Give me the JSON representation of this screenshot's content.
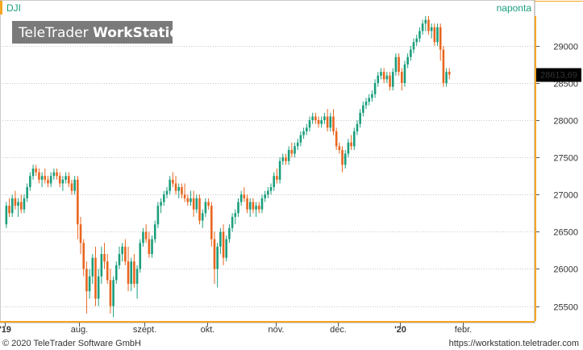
{
  "header": {
    "symbol": "DJI",
    "period": "naponta",
    "watermark_light": "TeleTrader ",
    "watermark_bold": "WorkStation"
  },
  "footer": {
    "copyright": "© 2020 TeleTrader Software GmbH",
    "url": "https://workstation.teletrader.com"
  },
  "colors": {
    "up": "#1a9e7c",
    "down": "#e8651e",
    "accent": "#f5a623",
    "grid": "#c8c8c8",
    "price_box": "#000000",
    "title": "#1a9e7c"
  },
  "chart_data": {
    "type": "candlestick",
    "symbol": "DJI",
    "period": "naponta",
    "last_price": 28613.69,
    "last_price_label": "28613,69",
    "ylim": [
      25300,
      29400
    ],
    "xlim": [
      0,
      160
    ],
    "y_ticks": [
      {
        "value": 25500,
        "label": "25500"
      },
      {
        "value": 26000,
        "label": "26000"
      },
      {
        "value": 26500,
        "label": "26500"
      },
      {
        "value": 27000,
        "label": "27000"
      },
      {
        "value": 27500,
        "label": "27500"
      },
      {
        "value": 28000,
        "label": "28000"
      },
      {
        "value": 28500,
        "label": "28500"
      },
      {
        "value": 29000,
        "label": "29000"
      }
    ],
    "x_ticks": [
      {
        "index": 0,
        "label": "'19",
        "bold": true
      },
      {
        "index": 25,
        "label": "aug.",
        "bold": false
      },
      {
        "index": 47,
        "label": "szept.",
        "bold": false
      },
      {
        "index": 68,
        "label": "okt.",
        "bold": false
      },
      {
        "index": 91,
        "label": "nov.",
        "bold": false
      },
      {
        "index": 112,
        "label": "dec.",
        "bold": false
      },
      {
        "index": 133,
        "label": "'20",
        "bold": true
      },
      {
        "index": 154,
        "label": "febr.",
        "bold": false
      }
    ],
    "candles": [
      [
        26600,
        26900,
        26550,
        26850
      ],
      [
        26850,
        26950,
        26700,
        26750
      ],
      [
        26750,
        27000,
        26700,
        26950
      ],
      [
        26950,
        27050,
        26800,
        26850
      ],
      [
        26850,
        26950,
        26700,
        26900
      ],
      [
        26900,
        27000,
        26750,
        26800
      ],
      [
        26800,
        27000,
        26750,
        26950
      ],
      [
        26950,
        27150,
        26900,
        27100
      ],
      [
        27100,
        27300,
        27050,
        27250
      ],
      [
        27250,
        27400,
        27200,
        27350
      ],
      [
        27350,
        27400,
        27250,
        27300
      ],
      [
        27300,
        27350,
        27150,
        27200
      ],
      [
        27200,
        27300,
        27100,
        27250
      ],
      [
        27250,
        27350,
        27150,
        27200
      ],
      [
        27200,
        27250,
        27100,
        27150
      ],
      [
        27150,
        27300,
        27100,
        27250
      ],
      [
        27250,
        27350,
        27200,
        27300
      ],
      [
        27300,
        27350,
        27200,
        27250
      ],
      [
        27250,
        27300,
        27100,
        27150
      ],
      [
        27150,
        27250,
        27050,
        27200
      ],
      [
        27200,
        27300,
        27150,
        27250
      ],
      [
        27250,
        27300,
        27100,
        27150
      ],
      [
        27150,
        27200,
        27000,
        27050
      ],
      [
        27050,
        27250,
        27000,
        27200
      ],
      [
        27200,
        27250,
        26400,
        26600
      ],
      [
        26600,
        26700,
        26200,
        26350
      ],
      [
        26350,
        26400,
        25900,
        26000
      ],
      [
        26000,
        26100,
        25400,
        25700
      ],
      [
        25700,
        26000,
        25600,
        25900
      ],
      [
        25900,
        26200,
        25800,
        26150
      ],
      [
        26150,
        26300,
        25500,
        25600
      ],
      [
        25600,
        26000,
        25500,
        25900
      ],
      [
        25900,
        26300,
        25800,
        26200
      ],
      [
        26200,
        26350,
        26000,
        26100
      ],
      [
        26100,
        26200,
        25800,
        25850
      ],
      [
        25850,
        26000,
        25400,
        25500
      ],
      [
        25500,
        25900,
        25350,
        25850
      ],
      [
        25850,
        26100,
        25800,
        26050
      ],
      [
        26050,
        26300,
        26000,
        26200
      ],
      [
        26200,
        26350,
        26100,
        26300
      ],
      [
        26300,
        26400,
        26050,
        26100
      ],
      [
        26100,
        26300,
        25700,
        25800
      ],
      [
        25800,
        26150,
        25700,
        26100
      ],
      [
        26100,
        26200,
        25750,
        25800
      ],
      [
        25800,
        26050,
        25600,
        26000
      ],
      [
        26000,
        26400,
        25950,
        26350
      ],
      [
        26350,
        26550,
        26300,
        26500
      ],
      [
        26500,
        26600,
        26350,
        26400
      ],
      [
        26400,
        26500,
        26150,
        26200
      ],
      [
        26200,
        26450,
        26150,
        26400
      ],
      [
        26400,
        26650,
        26350,
        26600
      ],
      [
        26600,
        26900,
        26550,
        26850
      ],
      [
        26850,
        26950,
        26750,
        26900
      ],
      [
        26900,
        27050,
        26850,
        27000
      ],
      [
        27000,
        27100,
        26950,
        27050
      ],
      [
        27050,
        27250,
        27000,
        27200
      ],
      [
        27200,
        27300,
        27100,
        27150
      ],
      [
        27150,
        27250,
        27000,
        27050
      ],
      [
        27050,
        27150,
        26950,
        27100
      ],
      [
        27100,
        27150,
        26950,
        27000
      ],
      [
        27000,
        27150,
        26900,
        26950
      ],
      [
        26950,
        27000,
        26850,
        26900
      ],
      [
        26900,
        27050,
        26850,
        26950
      ],
      [
        26950,
        27050,
        26700,
        26800
      ],
      [
        26800,
        27000,
        26750,
        26950
      ],
      [
        26950,
        27000,
        26600,
        26650
      ],
      [
        26650,
        26800,
        26550,
        26750
      ],
      [
        26750,
        26950,
        26700,
        26900
      ],
      [
        26900,
        26950,
        26800,
        26850
      ],
      [
        26850,
        26900,
        26300,
        26400
      ],
      [
        26400,
        26500,
        25800,
        26000
      ],
      [
        26000,
        26350,
        25750,
        26300
      ],
      [
        26300,
        26550,
        26200,
        26500
      ],
      [
        26500,
        26600,
        26050,
        26150
      ],
      [
        26150,
        26450,
        26100,
        26400
      ],
      [
        26400,
        26600,
        26350,
        26550
      ],
      [
        26550,
        26750,
        26500,
        26700
      ],
      [
        26700,
        26800,
        26600,
        26750
      ],
      [
        26750,
        26950,
        26700,
        26900
      ],
      [
        26900,
        27050,
        26850,
        27000
      ],
      [
        27000,
        27100,
        26900,
        26950
      ],
      [
        26950,
        27000,
        26750,
        26800
      ],
      [
        26800,
        26950,
        26700,
        26900
      ],
      [
        26900,
        26950,
        26750,
        26800
      ],
      [
        26800,
        26900,
        26700,
        26850
      ],
      [
        26850,
        26900,
        26750,
        26800
      ],
      [
        26800,
        27000,
        26750,
        26950
      ],
      [
        26950,
        27050,
        26900,
        27000
      ],
      [
        27000,
        27100,
        26950,
        27050
      ],
      [
        27050,
        27150,
        27000,
        27100
      ],
      [
        27100,
        27300,
        27050,
        27250
      ],
      [
        27250,
        27350,
        27150,
        27200
      ],
      [
        27200,
        27500,
        27150,
        27450
      ],
      [
        27450,
        27550,
        27400,
        27500
      ],
      [
        27500,
        27550,
        27400,
        27450
      ],
      [
        27450,
        27650,
        27400,
        27600
      ],
      [
        27600,
        27700,
        27500,
        27550
      ],
      [
        27550,
        27700,
        27500,
        27650
      ],
      [
        27650,
        27750,
        27600,
        27700
      ],
      [
        27700,
        27850,
        27650,
        27800
      ],
      [
        27800,
        27900,
        27750,
        27850
      ],
      [
        27850,
        27950,
        27800,
        27900
      ],
      [
        27900,
        28050,
        27850,
        28000
      ],
      [
        28000,
        28100,
        27950,
        28050
      ],
      [
        28050,
        28100,
        27950,
        28000
      ],
      [
        28000,
        28050,
        27900,
        27950
      ],
      [
        27950,
        28050,
        27900,
        28000
      ],
      [
        28000,
        28100,
        27950,
        28050
      ],
      [
        28050,
        28150,
        27850,
        27900
      ],
      [
        27900,
        28100,
        27850,
        28050
      ],
      [
        28050,
        28150,
        27800,
        27850
      ],
      [
        27850,
        27900,
        27600,
        27650
      ],
      [
        27650,
        27700,
        27550,
        27600
      ],
      [
        27600,
        27650,
        27300,
        27400
      ],
      [
        27400,
        27600,
        27350,
        27550
      ],
      [
        27550,
        27750,
        27500,
        27700
      ],
      [
        27700,
        27800,
        27600,
        27650
      ],
      [
        27650,
        27900,
        27600,
        27850
      ],
      [
        27850,
        28000,
        27800,
        27950
      ],
      [
        27950,
        28150,
        27900,
        28100
      ],
      [
        28100,
        28250,
        28050,
        28200
      ],
      [
        28200,
        28300,
        28150,
        28250
      ],
      [
        28250,
        28350,
        28200,
        28300
      ],
      [
        28300,
        28400,
        28250,
        28350
      ],
      [
        28350,
        28550,
        28300,
        28500
      ],
      [
        28500,
        28650,
        28450,
        28600
      ],
      [
        28600,
        28700,
        28550,
        28650
      ],
      [
        28650,
        28700,
        28500,
        28550
      ],
      [
        28550,
        28650,
        28500,
        28600
      ],
      [
        28600,
        28650,
        28400,
        28450
      ],
      [
        28450,
        28700,
        28400,
        28650
      ],
      [
        28650,
        28900,
        28600,
        28850
      ],
      [
        28850,
        28900,
        28600,
        28650
      ],
      [
        28650,
        28700,
        28400,
        28500
      ],
      [
        28500,
        28800,
        28450,
        28750
      ],
      [
        28750,
        28900,
        28700,
        28850
      ],
      [
        28850,
        29000,
        28800,
        28950
      ],
      [
        28950,
        29100,
        28900,
        29050
      ],
      [
        29050,
        29150,
        29000,
        29100
      ],
      [
        29100,
        29250,
        29050,
        29200
      ],
      [
        29200,
        29350,
        29150,
        29300
      ],
      [
        29300,
        29400,
        29200,
        29350
      ],
      [
        29350,
        29400,
        29150,
        29200
      ],
      [
        29200,
        29300,
        29100,
        29250
      ],
      [
        29250,
        29300,
        29000,
        29050
      ],
      [
        29050,
        29300,
        29000,
        29250
      ],
      [
        29250,
        29300,
        28800,
        28950
      ],
      [
        28950,
        29000,
        28450,
        28500
      ],
      [
        28500,
        28700,
        28450,
        28650
      ],
      [
        28650,
        28700,
        28550,
        28613.69
      ]
    ]
  }
}
